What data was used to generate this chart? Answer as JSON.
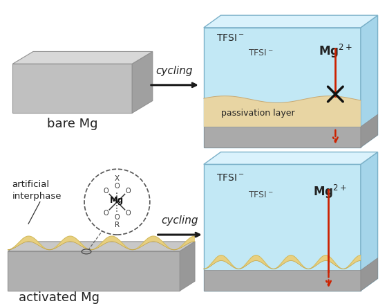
{
  "bg_color": "#ffffff",
  "electrolyte_front": "#c2e8f5",
  "electrolyte_top": "#daf2fc",
  "electrolyte_right": "#a5d5ea",
  "gray_base": "#b0b0b0",
  "gray_base_dark": "#989898",
  "gray_base_top": "#c8c8c8",
  "gray_box_front": "#c0c0c0",
  "gray_box_top": "#d8d8d8",
  "gray_box_right": "#a0a0a0",
  "passivation_fill": "#e8d5a3",
  "passivation_edge": "#c8a870",
  "wave_fill": "#e8d080",
  "wave_top_edge": "#d4bc60",
  "wave_bottom_edge": "#c0a040",
  "red_color": "#cc2200",
  "arrow_color": "#1a1a1a",
  "text_dark": "#222222",
  "text_mid": "#444444",
  "edge_box": "#7ab0c8",
  "label_bare_mg": "bare Mg",
  "label_activated_mg": "activated Mg",
  "label_cycling": "cycling",
  "label_passivation": "passivation layer",
  "label_artificial": "artificial\ninterphase"
}
